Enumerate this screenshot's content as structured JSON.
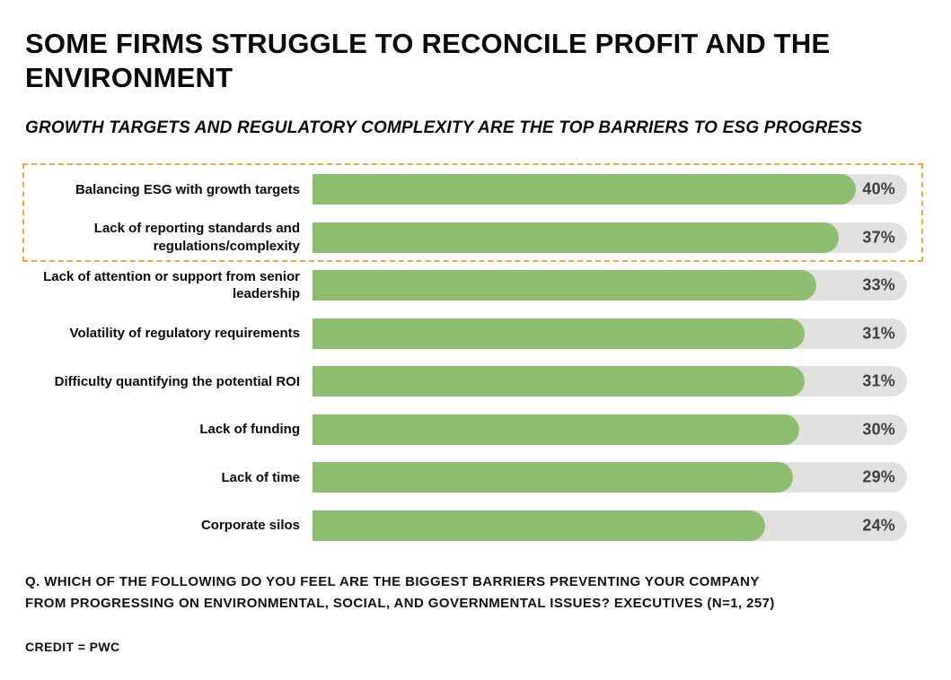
{
  "page": {
    "title": "SOME FIRMS STRUGGLE TO RECONCILE PROFIT AND THE ENVIRONMENT",
    "subtitle": "GROWTH TARGETS AND REGULATORY COMPLEXITY ARE THE TOP BARRIERS TO ESG PROGRESS",
    "footnote_question": "Q. WHICH OF THE FOLLOWING DO YOU FEEL ARE THE BIGGEST BARRIERS PREVENTING YOUR COMPANY FROM PROGRESSING ON ENVIRONMENTAL, SOCIAL, AND GOVERNMENTAL ISSUES? EXECUTIVES (N=1, 257)",
    "credit": "CREDIT = PWC"
  },
  "chart_data": {
    "type": "bar",
    "orientation": "horizontal",
    "categories": [
      "Balancing ESG with growth targets",
      "Lack of reporting standards and regulations/complexity",
      "Lack of attention or support from senior leadership",
      "Volatility of regulatory requirements",
      "Difficulty quantifying the potential ROI",
      "Lack of funding",
      "Lack of time",
      "Corporate silos"
    ],
    "values": [
      40,
      37,
      33,
      31,
      31,
      30,
      29,
      24
    ],
    "value_suffix": "%",
    "title": "SOME FIRMS STRUGGLE TO RECONCILE PROFIT AND THE ENVIRONMENT",
    "subtitle": "GROWTH TARGETS AND REGULATORY COMPLEXITY ARE THE TOP BARRIERS TO ESG PROGRESS",
    "xlabel": "",
    "ylabel": "",
    "grid": false,
    "legend": false,
    "value_labels_position": "inside track, right end",
    "highlighted_categories": [
      "Balancing ESG with growth targets",
      "Lack of reporting standards and regulations/complexity"
    ],
    "highlight_style": "dashed orange rectangle around top two rows",
    "colors": {
      "bar_fill": "#8dbd6f",
      "bar_track": "#e1e1df",
      "value_text": "#3e3e3e",
      "highlight_border": "#f2a73d",
      "background": "#ffffff",
      "text": "#000000"
    },
    "layout": {
      "bars_not_zero_based": true,
      "fill_mapping": {
        "intercept_pct": 53.25,
        "slope_pct_per_point": 0.953
      }
    }
  }
}
